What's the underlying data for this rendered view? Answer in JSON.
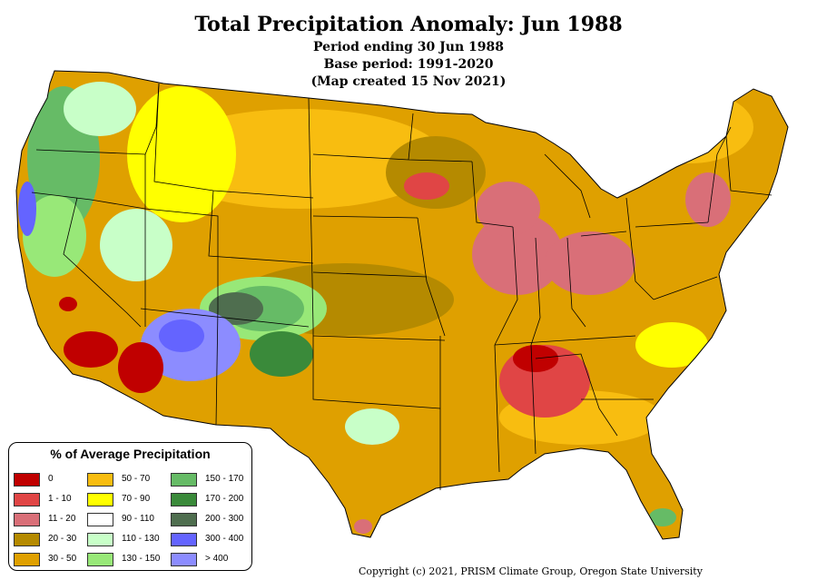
{
  "title": "Total Precipitation Anomaly: Jun 1988",
  "subtitle_lines": [
    "Period ending 30 Jun 1988",
    "Base period: 1991-2020",
    "(Map created 15 Nov 2021)"
  ],
  "legend": {
    "title": "% of Average Precipitation",
    "items": [
      {
        "label": "0",
        "color": "#c00000"
      },
      {
        "label": "1 - 10",
        "color": "#e04545"
      },
      {
        "label": "11 - 20",
        "color": "#d96f78"
      },
      {
        "label": "20 - 30",
        "color": "#b58a00"
      },
      {
        "label": "30 - 50",
        "color": "#dfa000"
      },
      {
        "label": "50 - 70",
        "color": "#f8bd10"
      },
      {
        "label": "70 - 90",
        "color": "#ffff00"
      },
      {
        "label": "90 - 110",
        "color": "#ffffff"
      },
      {
        "label": "110 - 130",
        "color": "#c8ffc8"
      },
      {
        "label": "130 - 150",
        "color": "#98e878"
      },
      {
        "label": "150 - 170",
        "color": "#66bb66"
      },
      {
        "label": "170 - 200",
        "color": "#3a8a3a"
      },
      {
        "label": "200 - 300",
        "color": "#4f6e4f"
      },
      {
        "label": "300 - 400",
        "color": "#6464ff"
      },
      {
        "label": "> 400",
        "color": "#8c8cff"
      }
    ]
  },
  "copyright": "Copyright (c) 2021, PRISM Climate Group, Oregon State University"
}
